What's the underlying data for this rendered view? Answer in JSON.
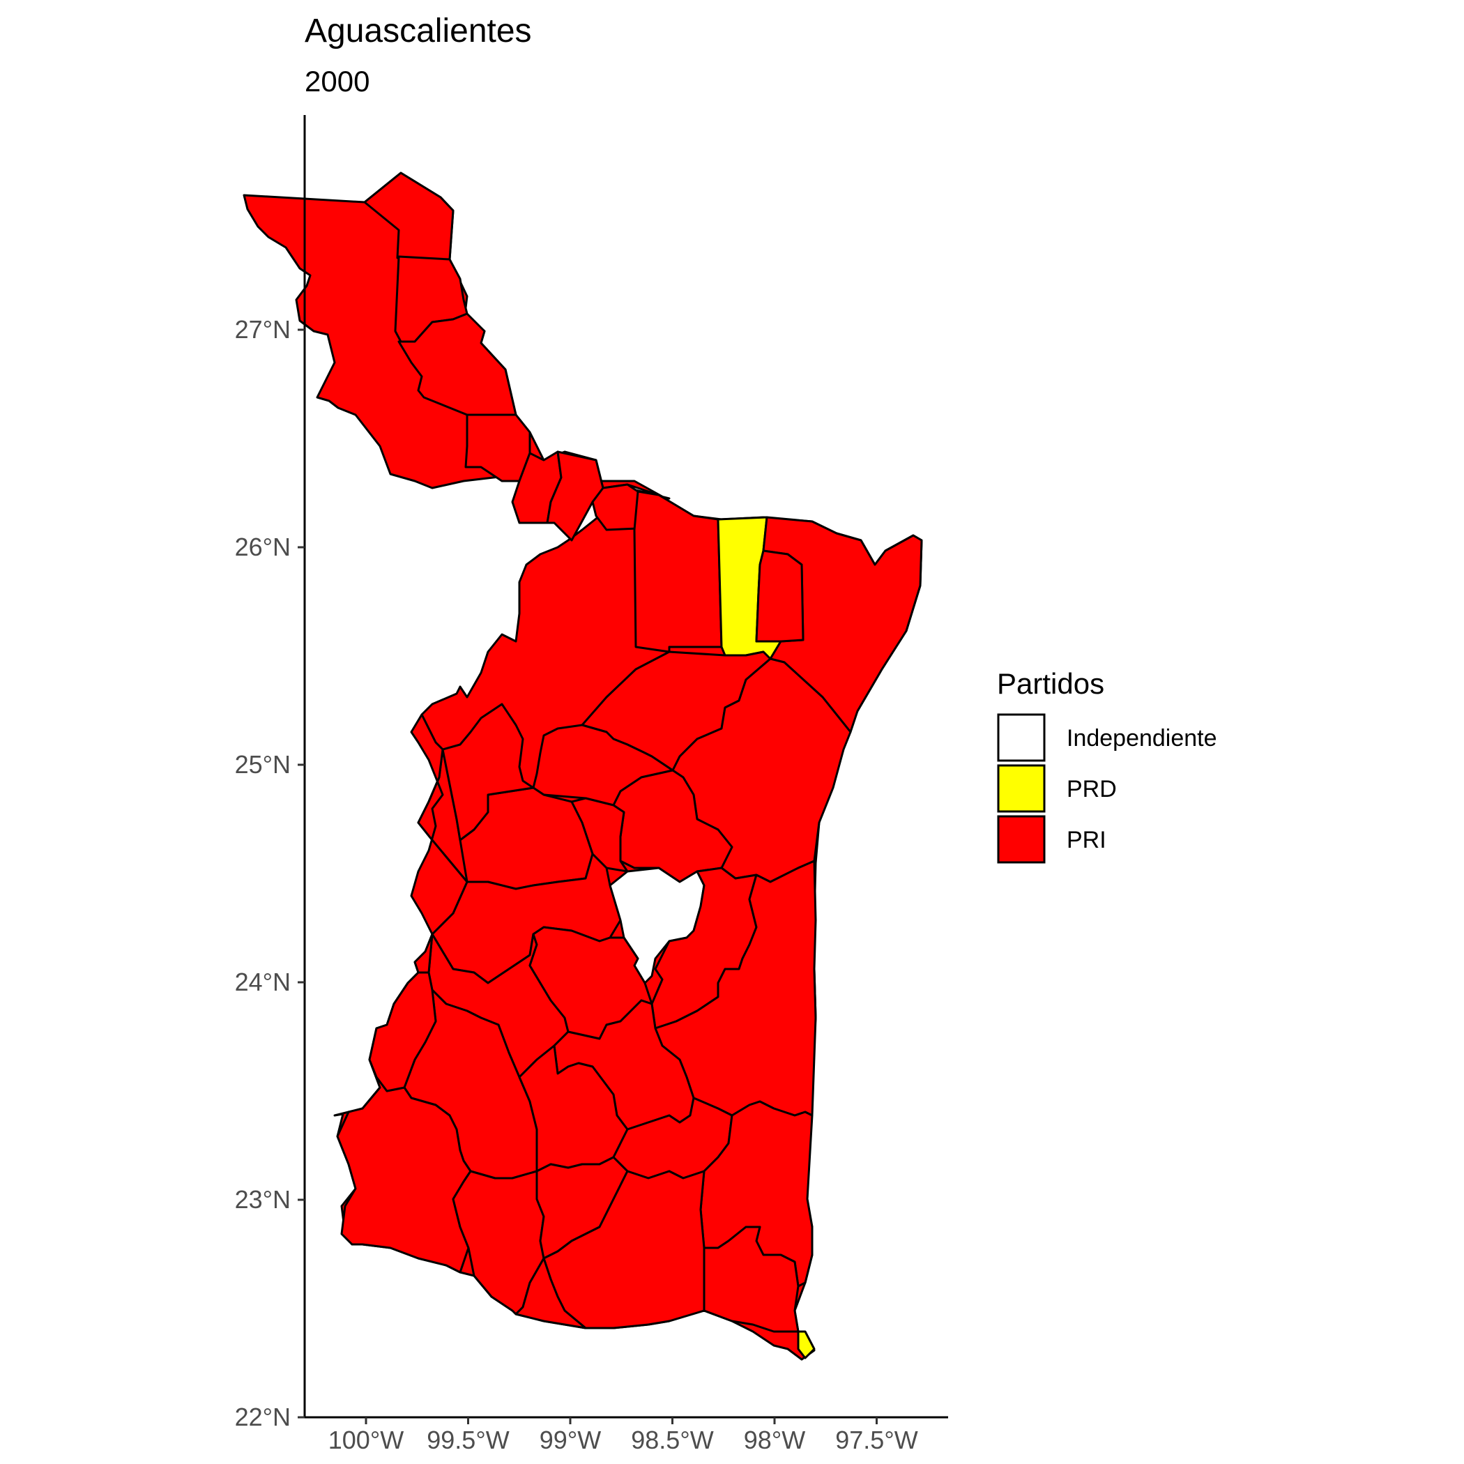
{
  "title": "Aguascalientes",
  "subtitle": "2000",
  "legend": {
    "title": "Partidos",
    "items": [
      {
        "label": "Independiente",
        "color": "#FFFFFF"
      },
      {
        "label": "PRD",
        "color": "#FFFF00"
      },
      {
        "label": "PRI",
        "color": "#FF0000"
      }
    ]
  },
  "chart_data": {
    "type": "choropleth-map",
    "title": "Aguascalientes",
    "subtitle": "2000",
    "x_axis": {
      "ticks": [
        "100°W",
        "99.5°W",
        "99°W",
        "98.5°W",
        "98°W",
        "97.5°W"
      ],
      "values": [
        -100,
        -99.5,
        -99,
        -98.5,
        -98,
        -97.5
      ]
    },
    "y_axis": {
      "ticks": [
        "22°N",
        "23°N",
        "24°N",
        "25°N",
        "26°N",
        "27°N"
      ],
      "values": [
        22,
        23,
        24,
        25,
        26,
        27
      ]
    },
    "grid": false,
    "legend_position": "right",
    "regions_by_party": {
      "PRI": "most municipalities",
      "PRD": "two municipalities (a narrow northern one near 98.1°W and a small one at the southern tip)",
      "Independiente": "one municipality in the center near 98.7°W, 24.3°N"
    }
  }
}
